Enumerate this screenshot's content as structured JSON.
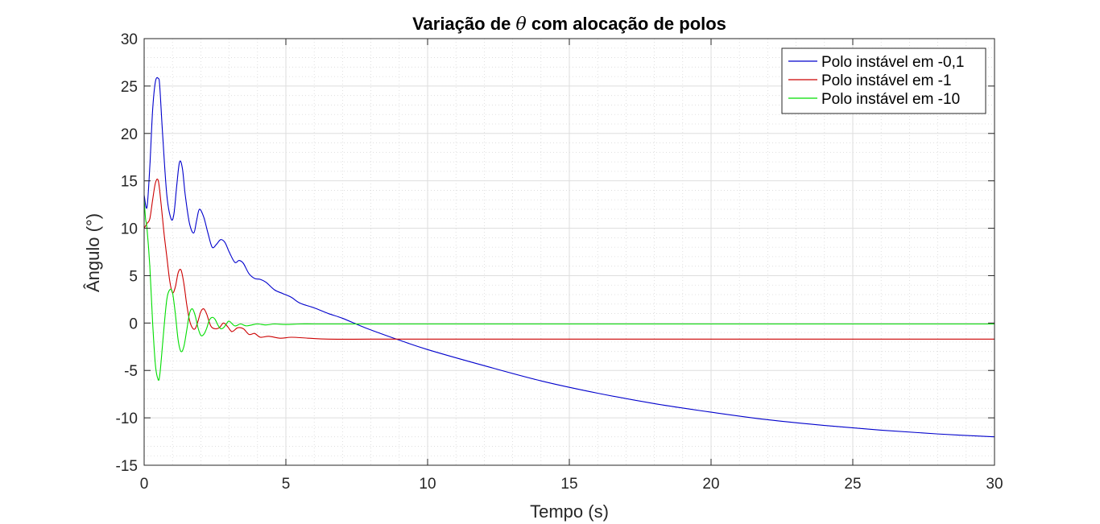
{
  "chart_data": {
    "type": "line",
    "title_prefix": "Variação de ",
    "title_symbol": "θ",
    "title_suffix": " com alocação de polos",
    "xlabel": "Tempo (s)",
    "ylabel": "Ângulo (°)",
    "xlim": [
      0,
      30
    ],
    "ylim": [
      -15,
      30
    ],
    "xticks": [
      0,
      5,
      10,
      15,
      20,
      25,
      30
    ],
    "yticks": [
      -15,
      -10,
      -5,
      0,
      5,
      10,
      15,
      20,
      25,
      30
    ],
    "grid": true,
    "minor_grid": true,
    "legend_position": "top-right",
    "series": [
      {
        "name": "Polo instável em -0,1",
        "color": "#0000cc",
        "x": [
          0,
          0.1,
          0.2,
          0.3,
          0.4,
          0.5,
          0.55,
          0.65,
          0.8,
          0.95,
          1.05,
          1.15,
          1.25,
          1.35,
          1.45,
          1.6,
          1.75,
          1.85,
          1.95,
          2.1,
          2.25,
          2.4,
          2.55,
          2.7,
          2.85,
          3.0,
          3.2,
          3.35,
          3.5,
          3.7,
          3.9,
          4.1,
          4.3,
          4.6,
          4.9,
          5.2,
          5.5,
          6.0,
          6.5,
          7.0,
          7.8,
          9.0,
          10.0,
          12.0,
          14.0,
          16.0,
          18.0,
          20.0,
          22.0,
          24.0,
          26.0,
          28.0,
          30.0
        ],
        "y": [
          13.5,
          12.2,
          16.5,
          22.5,
          25.5,
          25.8,
          25.0,
          20.0,
          13.5,
          11.0,
          11.5,
          14.5,
          17.0,
          16.3,
          13.5,
          10.5,
          9.5,
          10.8,
          12.0,
          11.2,
          9.5,
          8.0,
          8.3,
          8.8,
          8.5,
          7.5,
          6.4,
          6.6,
          6.3,
          5.2,
          4.7,
          4.6,
          4.3,
          3.5,
          3.1,
          2.7,
          2.1,
          1.6,
          1.0,
          0.5,
          -0.5,
          -1.8,
          -2.8,
          -4.5,
          -6.1,
          -7.4,
          -8.5,
          -9.4,
          -10.2,
          -10.8,
          -11.3,
          -11.7,
          -12.0
        ]
      },
      {
        "name": "Polo instável em -1",
        "color": "#cc0000",
        "x": [
          0,
          0.1,
          0.2,
          0.3,
          0.4,
          0.5,
          0.6,
          0.7,
          0.8,
          0.9,
          1.0,
          1.1,
          1.2,
          1.3,
          1.4,
          1.5,
          1.6,
          1.7,
          1.8,
          1.9,
          2.0,
          2.1,
          2.2,
          2.35,
          2.5,
          2.65,
          2.8,
          2.95,
          3.1,
          3.3,
          3.5,
          3.7,
          3.9,
          4.1,
          4.4,
          4.8,
          5.2,
          5.8,
          6.5,
          8.0,
          10.0,
          15.0,
          20.0,
          25.0,
          30.0
        ],
        "y": [
          10.0,
          10.5,
          11.0,
          13.0,
          14.8,
          15.0,
          12.5,
          9.5,
          7.0,
          4.5,
          3.2,
          3.8,
          5.3,
          5.6,
          4.2,
          2.0,
          0.3,
          -0.5,
          -0.6,
          0.2,
          1.2,
          1.5,
          1.0,
          -0.3,
          -0.6,
          -0.5,
          0.0,
          -0.4,
          -0.9,
          -0.5,
          -0.6,
          -1.2,
          -1.1,
          -1.5,
          -1.4,
          -1.6,
          -1.5,
          -1.6,
          -1.7,
          -1.7,
          -1.7,
          -1.7,
          -1.7,
          -1.7,
          -1.7
        ]
      },
      {
        "name": "Polo instável em -10",
        "color": "#00dd00",
        "x": [
          0,
          0.05,
          0.1,
          0.2,
          0.3,
          0.4,
          0.5,
          0.55,
          0.6,
          0.7,
          0.8,
          0.9,
          1.0,
          1.1,
          1.2,
          1.3,
          1.4,
          1.5,
          1.6,
          1.7,
          1.8,
          1.9,
          2.0,
          2.1,
          2.2,
          2.3,
          2.4,
          2.5,
          2.6,
          2.7,
          2.8,
          2.9,
          3.0,
          3.2,
          3.4,
          3.6,
          3.8,
          4.0,
          4.3,
          4.6,
          5.0,
          5.5,
          6.0,
          7.0,
          10.0,
          20.0,
          30.0
        ],
        "y": [
          13.0,
          11.0,
          10.0,
          6.0,
          0.0,
          -4.5,
          -6.0,
          -5.5,
          -4.0,
          -0.5,
          2.5,
          3.5,
          3.2,
          1.0,
          -1.8,
          -3.0,
          -2.5,
          -0.8,
          1.0,
          1.5,
          0.8,
          -0.5,
          -1.3,
          -1.2,
          -0.6,
          0.3,
          0.6,
          0.4,
          -0.2,
          -0.6,
          -0.5,
          -0.1,
          0.2,
          -0.3,
          -0.1,
          -0.3,
          -0.2,
          -0.1,
          -0.2,
          -0.1,
          -0.15,
          -0.1,
          -0.1,
          -0.1,
          -0.1,
          -0.1,
          -0.1
        ]
      }
    ]
  }
}
